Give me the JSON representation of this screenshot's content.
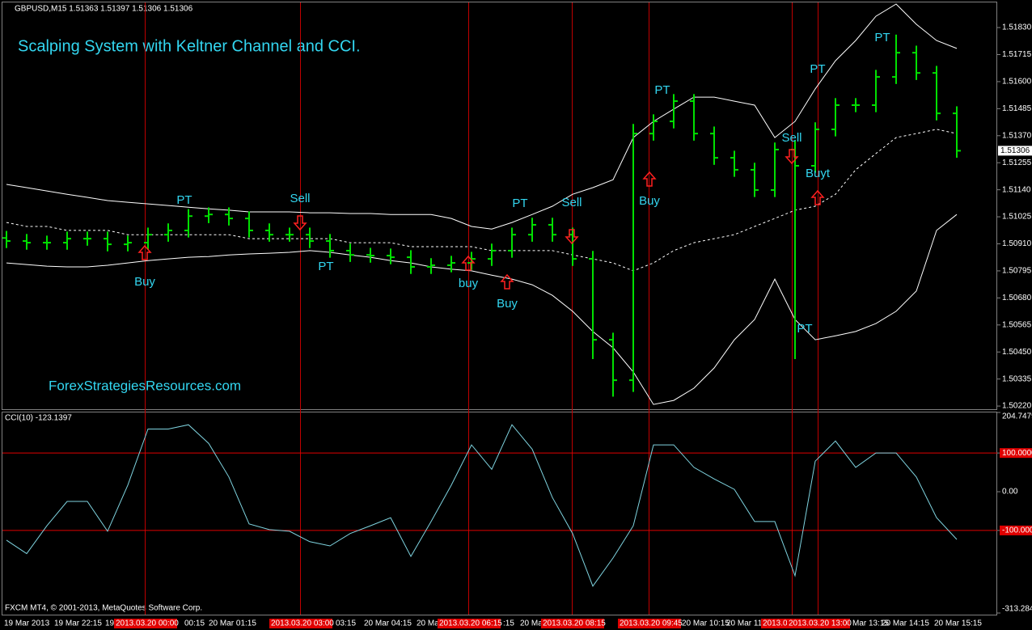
{
  "chart_data": [
    {
      "type": "ohlc",
      "symbol_info": "GBPUSD,M15  1.51363 1.51397 1.51306 1.51306",
      "title": "Scalping System with Keltner Channel and CCI.",
      "watermark": "ForexStrategiesResources.com",
      "price_marker": "1.51306",
      "color": "#00e000",
      "channel_color": "#ffffff",
      "open": [
        1.50935,
        1.50922,
        1.50915,
        1.50915,
        1.50932,
        1.50932,
        1.50908,
        1.50915,
        1.50949,
        1.50967,
        1.51028,
        1.51035,
        1.51018,
        1.50967,
        1.50949,
        1.50949,
        1.50922,
        1.50881,
        1.50863,
        1.5086,
        1.50853,
        1.50812,
        1.50819,
        1.50829,
        1.50846,
        1.50881,
        1.50949,
        1.50991,
        1.50949,
        1.50846,
        1.50502,
        1.5033,
        1.51379,
        1.51431,
        1.51517,
        1.51379,
        1.51276,
        1.51225,
        1.51139,
        1.51311,
        1.51242,
        1.51397,
        1.515,
        1.515,
        1.5162,
        1.51723,
        1.51637,
        1.51465
      ],
      "high": [
        1.50965,
        1.50952,
        1.50945,
        1.50962,
        1.50962,
        1.50962,
        1.50945,
        1.50979,
        1.50997,
        1.51058,
        1.51065,
        1.51065,
        1.51048,
        1.50997,
        1.50979,
        1.50979,
        1.50952,
        1.50911,
        1.50893,
        1.5089,
        1.50883,
        1.50849,
        1.50859,
        1.50876,
        1.50911,
        1.50979,
        1.51021,
        1.51021,
        1.50979,
        1.5088,
        1.50532,
        1.5142,
        1.51461,
        1.51547,
        1.51547,
        1.51409,
        1.51306,
        1.51255,
        1.51341,
        1.5135,
        1.51427,
        1.5153,
        1.5153,
        1.5165,
        1.518,
        1.51753,
        1.51667,
        1.51495
      ],
      "low": [
        1.50892,
        1.50885,
        1.50885,
        1.50885,
        1.50902,
        1.50878,
        1.50878,
        1.50885,
        1.50919,
        1.50937,
        1.50998,
        1.50988,
        1.50937,
        1.50919,
        1.50919,
        1.50892,
        1.50851,
        1.50833,
        1.5083,
        1.50823,
        1.50782,
        1.50782,
        1.50789,
        1.50799,
        1.50816,
        1.50851,
        1.50919,
        1.50919,
        1.50816,
        1.5042,
        1.5026,
        1.5028,
        1.51349,
        1.51401,
        1.51349,
        1.51246,
        1.51195,
        1.51109,
        1.51109,
        1.5042,
        1.51212,
        1.51367,
        1.5147,
        1.5147,
        1.5159,
        1.51607,
        1.51435,
        1.51276
      ],
      "close": [
        1.50922,
        1.50915,
        1.50915,
        1.50932,
        1.50932,
        1.50908,
        1.50915,
        1.50949,
        1.50967,
        1.51028,
        1.51035,
        1.51018,
        1.50967,
        1.50949,
        1.50949,
        1.50922,
        1.50881,
        1.50863,
        1.5086,
        1.50853,
        1.50812,
        1.50819,
        1.50829,
        1.50846,
        1.50881,
        1.50949,
        1.50991,
        1.50949,
        1.50846,
        1.50502,
        1.5033,
        1.51379,
        1.51431,
        1.51517,
        1.51379,
        1.51276,
        1.51225,
        1.51139,
        1.51311,
        1.51242,
        1.51397,
        1.515,
        1.515,
        1.5162,
        1.51723,
        1.51637,
        1.51465,
        1.51306
      ],
      "upper": [
        1.51163,
        1.51149,
        1.51135,
        1.51121,
        1.51108,
        1.51094,
        1.51087,
        1.5108,
        1.51073,
        1.51066,
        1.51059,
        1.51053,
        1.51046,
        1.51046,
        1.51046,
        1.51042,
        1.51042,
        1.51039,
        1.51039,
        1.51035,
        1.51035,
        1.51035,
        1.51018,
        1.50984,
        1.50973,
        1.51001,
        1.51035,
        1.5107,
        1.51121,
        1.51149,
        1.51183,
        1.51362,
        1.51431,
        1.51483,
        1.51534,
        1.51534,
        1.51517,
        1.515,
        1.51362,
        1.51431,
        1.51569,
        1.51689,
        1.51775,
        1.51878,
        1.5193,
        1.51844,
        1.51775,
        1.51741
      ],
      "middle": [
        1.51001,
        1.50984,
        1.50984,
        1.50967,
        1.50967,
        1.50967,
        1.50949,
        1.50949,
        1.50949,
        1.50949,
        1.50949,
        1.50949,
        1.50932,
        1.50932,
        1.50932,
        1.50932,
        1.50932,
        1.50915,
        1.50915,
        1.50915,
        1.50898,
        1.50898,
        1.50898,
        1.50898,
        1.50881,
        1.50881,
        1.50881,
        1.50881,
        1.50863,
        1.50846,
        1.50829,
        1.50795,
        1.50829,
        1.50881,
        1.50915,
        1.50932,
        1.50949,
        1.50984,
        1.51018,
        1.51053,
        1.5107,
        1.51121,
        1.51225,
        1.51294,
        1.51362,
        1.51379,
        1.51397,
        1.51379
      ],
      "lower": [
        1.50829,
        1.50822,
        1.50815,
        1.50812,
        1.50812,
        1.50819,
        1.50829,
        1.50839,
        1.50846,
        1.50853,
        1.50856,
        1.50863,
        1.50867,
        1.5087,
        1.50874,
        1.50881,
        1.50874,
        1.50863,
        1.50853,
        1.50839,
        1.50829,
        1.50812,
        1.50802,
        1.50795,
        1.50777,
        1.5076,
        1.50736,
        1.50691,
        1.50623,
        1.50537,
        1.50468,
        1.50365,
        1.50227,
        1.50244,
        1.50296,
        1.50382,
        1.50502,
        1.50588,
        1.5076,
        1.50588,
        1.50502,
        1.50519,
        1.50537,
        1.50571,
        1.50623,
        1.50709,
        1.50967,
        1.51035
      ],
      "ylim": [
        1.5021,
        1.5193
      ],
      "yticks": [
        {
          "value": 1.5183,
          "label": "1.51830"
        },
        1.51715,
        {
          "value": 1.516,
          "label": "1.51600"
        },
        1.51485,
        {
          "value": 1.5137,
          "label": "1.51370"
        },
        1.51255,
        {
          "value": 1.5114,
          "label": "1.51140"
        },
        1.51025,
        {
          "value": 1.5091,
          "label": "1.50910"
        },
        1.50795,
        {
          "value": 1.5068,
          "label": "1.50680"
        },
        1.50565,
        {
          "value": 1.5045,
          "label": "1.50450"
        },
        1.50335,
        {
          "value": 1.5022,
          "label": "1.50220"
        }
      ],
      "annotations": [
        "Buy",
        "PT",
        "Sell",
        "PT",
        "buy",
        "Buy",
        "PT",
        "Sell",
        "Buy",
        "PT",
        "Sell",
        "Buyt",
        "PT",
        "PT",
        "PT"
      ]
    },
    {
      "type": "line",
      "title": "CCI(10) -123.1397",
      "color": "#7fd4e0",
      "values": [
        -125,
        -160,
        -88,
        -25,
        -25,
        -102,
        17,
        162,
        162,
        173,
        125,
        38,
        -83,
        -98,
        -102,
        -129,
        -140,
        -108,
        -88,
        -67,
        -167,
        -77,
        17,
        121,
        58,
        173,
        110,
        -15,
        -108,
        -244,
        -171,
        -88,
        121,
        121,
        63,
        33,
        6,
        -77,
        -77,
        -217,
        79,
        131,
        63,
        100,
        100,
        38,
        -67,
        -123.14
      ],
      "ylim": [
        -313.2847,
        204.7479
      ],
      "yticks": [
        204.7479,
        {
          "value": 100,
          "label": "100.0000"
        },
        {
          "value": 0,
          "label": "0.00"
        },
        {
          "value": -100,
          "label": "-100.0000"
        },
        -313.2847
      ],
      "levels": [
        100,
        -100
      ],
      "level_color": "#e00000"
    }
  ],
  "x_axis": {
    "labels": [
      "19 Mar 2013",
      "19 Mar 22:15",
      "19",
      "00:15",
      "20 Mar 01:15",
      "03:15",
      "20 Mar 04:15",
      "20 Ma",
      ":15",
      "20 Ma",
      "20 Mar 10:15",
      "20 Mar 11",
      "Mar 13:15",
      "20 Mar 14:15",
      "20 Mar 15:15"
    ],
    "markers": [
      "2013.03.20 00:00",
      "2013.03.20 03:00",
      "2013.03.20 06:15",
      "2013.03.20 08:15",
      "2013.03.20 09:45",
      "2013.0",
      "2013.03.20 13:00"
    ]
  },
  "footer": "FXCM MT4, © 2001-2013, MetaQuotes Software Corp."
}
